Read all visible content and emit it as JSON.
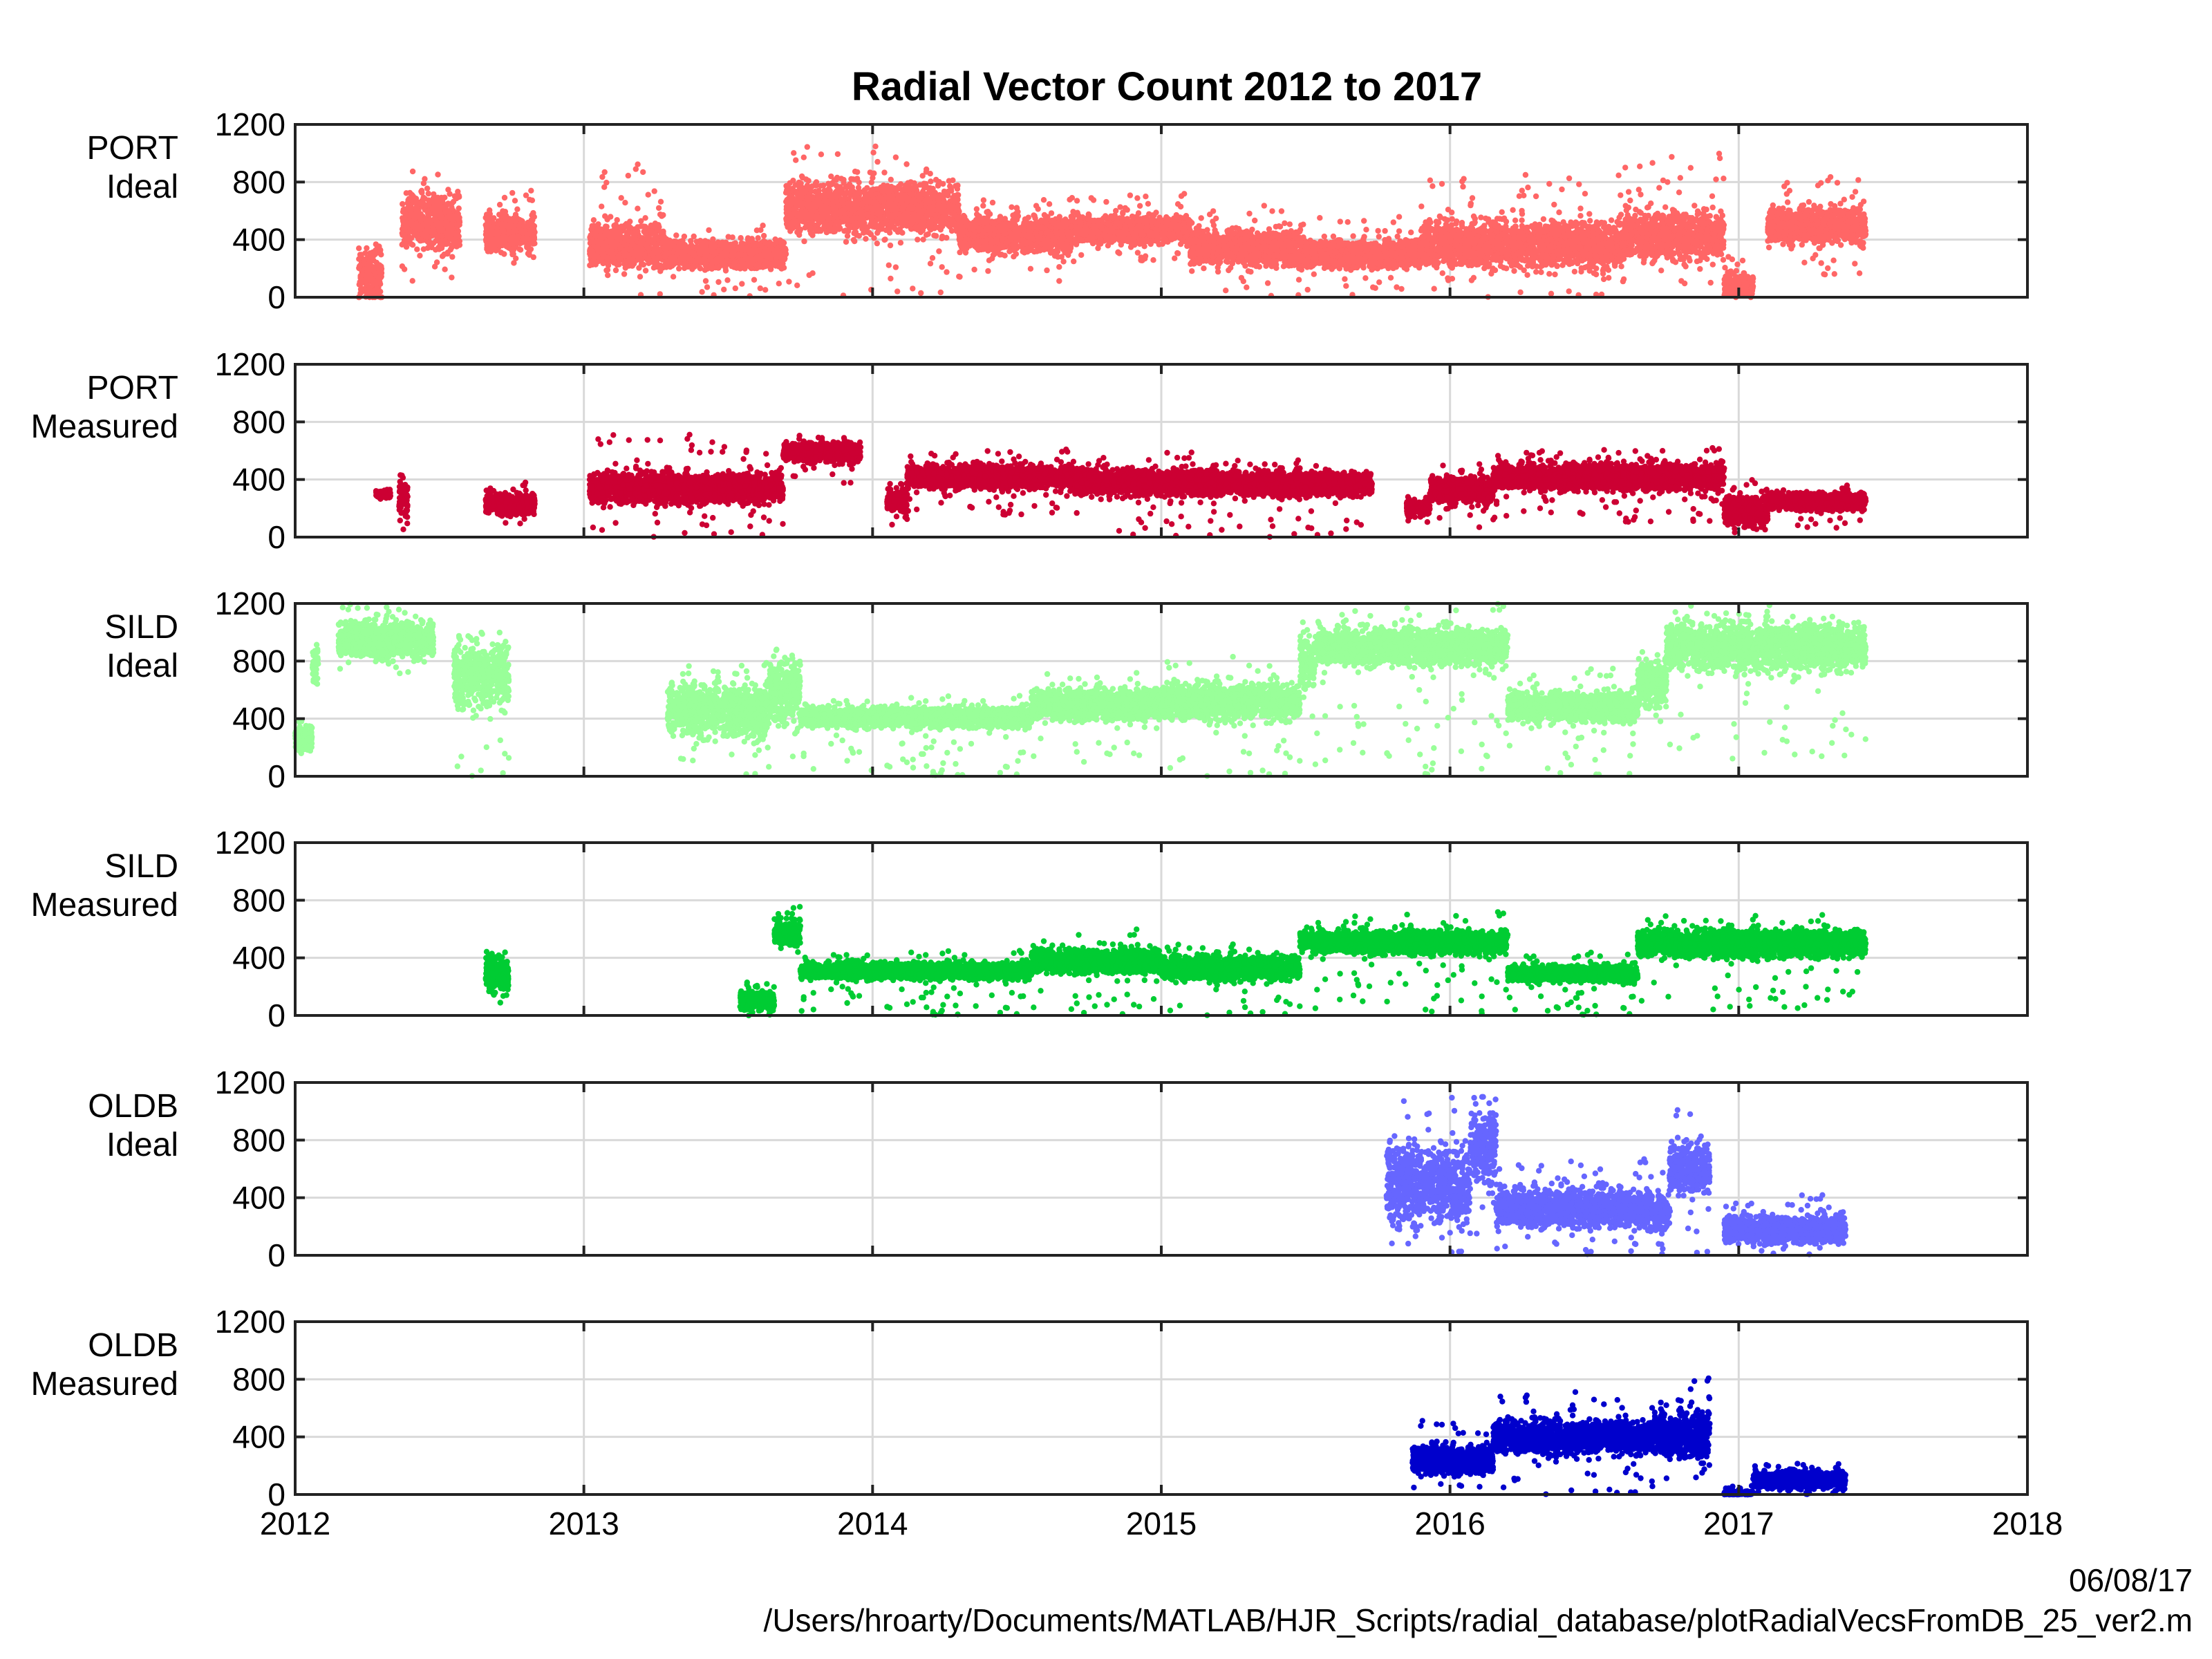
{
  "chart_data": {
    "type": "scatter",
    "title": "Radial Vector Count 2012 to 2017",
    "xlim": [
      2012,
      2018
    ],
    "ylim": [
      0,
      1200
    ],
    "x_ticks": [
      "2012",
      "2013",
      "2014",
      "2015",
      "2016",
      "2017",
      "2018"
    ],
    "y_ticks": [
      "0",
      "400",
      "800",
      "1200"
    ],
    "grid": true,
    "panels": [
      {
        "label_line1": "PORT",
        "label_line2": "Ideal",
        "color": "#ff6666",
        "segments": [
          {
            "x": [
              2012.22,
              2012.3
            ],
            "y": [
              0,
              560
            ],
            "level": 150,
            "spread": 150
          },
          {
            "x": [
              2012.37,
              2012.57
            ],
            "y": [
              60,
              930
            ],
            "level": 520,
            "spread": 170
          },
          {
            "x": [
              2012.66,
              2012.83
            ],
            "y": [
              230,
              760
            ],
            "level": 450,
            "spread": 120
          },
          {
            "x": [
              2013.02,
              2013.28
            ],
            "y": [
              0,
              930
            ],
            "level": 360,
            "spread": 140
          },
          {
            "x": [
              2013.28,
              2013.7
            ],
            "y": [
              0,
              500
            ],
            "level": 300,
            "spread": 80
          },
          {
            "x": [
              2013.7,
              2014.3
            ],
            "y": [
              10,
              1060
            ],
            "level": 620,
            "spread": 160
          },
          {
            "x": [
              2014.3,
              2014.7
            ],
            "y": [
              100,
              700
            ],
            "level": 440,
            "spread": 110
          },
          {
            "x": [
              2014.7,
              2015.1
            ],
            "y": [
              250,
              720
            ],
            "level": 470,
            "spread": 80
          },
          {
            "x": [
              2015.1,
              2015.5
            ],
            "y": [
              0,
              640
            ],
            "level": 340,
            "spread": 110
          },
          {
            "x": [
              2015.5,
              2015.9
            ],
            "y": [
              0,
              560
            ],
            "level": 300,
            "spread": 80
          },
          {
            "x": [
              2015.9,
              2016.6
            ],
            "y": [
              0,
              860
            ],
            "level": 370,
            "spread": 140
          },
          {
            "x": [
              2016.6,
              2016.95
            ],
            "y": [
              60,
              1000
            ],
            "level": 430,
            "spread": 140
          },
          {
            "x": [
              2016.95,
              2017.05
            ],
            "y": [
              0,
              300
            ],
            "level": 80,
            "spread": 70
          },
          {
            "x": [
              2017.1,
              2017.44
            ],
            "y": [
              150,
              840
            ],
            "level": 500,
            "spread": 110
          }
        ]
      },
      {
        "label_line1": "PORT",
        "label_line2": "Measured",
        "color": "#cc0033",
        "segments": [
          {
            "x": [
              2012.28,
              2012.33
            ],
            "y": [
              260,
              330
            ],
            "level": 300,
            "spread": 25
          },
          {
            "x": [
              2012.36,
              2012.39
            ],
            "y": [
              0,
              500
            ],
            "level": 280,
            "spread": 130
          },
          {
            "x": [
              2012.66,
              2012.83
            ],
            "y": [
              90,
              380
            ],
            "level": 230,
            "spread": 60
          },
          {
            "x": [
              2013.02,
              2013.69
            ],
            "y": [
              0,
              720
            ],
            "level": 340,
            "spread": 90
          },
          {
            "x": [
              2013.69,
              2013.96
            ],
            "y": [
              370,
              720
            ],
            "level": 590,
            "spread": 60
          },
          {
            "x": [
              2014.05,
              2014.12
            ],
            "y": [
              40,
              380
            ],
            "level": 260,
            "spread": 70
          },
          {
            "x": [
              2014.12,
              2014.7
            ],
            "y": [
              150,
              610
            ],
            "level": 420,
            "spread": 70
          },
          {
            "x": [
              2014.7,
              2015.2
            ],
            "y": [
              0,
              590
            ],
            "level": 380,
            "spread": 80
          },
          {
            "x": [
              2015.2,
              2015.73
            ],
            "y": [
              0,
              540
            ],
            "level": 370,
            "spread": 70
          },
          {
            "x": [
              2015.85,
              2015.93
            ],
            "y": [
              100,
              300
            ],
            "level": 200,
            "spread": 50
          },
          {
            "x": [
              2015.93,
              2016.15
            ],
            "y": [
              60,
              550
            ],
            "level": 330,
            "spread": 80
          },
          {
            "x": [
              2016.15,
              2016.95
            ],
            "y": [
              100,
              620
            ],
            "level": 420,
            "spread": 80
          },
          {
            "x": [
              2016.95,
              2017.1
            ],
            "y": [
              0,
              400
            ],
            "level": 180,
            "spread": 100
          },
          {
            "x": [
              2017.1,
              2017.44
            ],
            "y": [
              60,
              360
            ],
            "level": 250,
            "spread": 50
          }
        ]
      },
      {
        "label_line1": "SILD",
        "label_line2": "Ideal",
        "color": "#99ff99",
        "segments": [
          {
            "x": [
              2012.0,
              2012.06
            ],
            "y": [
              120,
              400
            ],
            "level": 270,
            "spread": 70
          },
          {
            "x": [
              2012.06,
              2012.08
            ],
            "y": [
              600,
              1000
            ],
            "level": 780,
            "spread": 100
          },
          {
            "x": [
              2012.15,
              2012.48
            ],
            "y": [
              700,
              1200
            ],
            "level": 950,
            "spread": 110
          },
          {
            "x": [
              2012.55,
              2012.74
            ],
            "y": [
              0,
              1000
            ],
            "level": 700,
            "spread": 200
          },
          {
            "x": [
              2013.29,
              2013.64
            ],
            "y": [
              0,
              800
            ],
            "level": 460,
            "spread": 160
          },
          {
            "x": [
              2013.64,
              2013.75
            ],
            "y": [
              0,
              950
            ],
            "level": 600,
            "spread": 200
          },
          {
            "x": [
              2013.75,
              2014.55
            ],
            "y": [
              0,
              560
            ],
            "level": 410,
            "spread": 60
          },
          {
            "x": [
              2014.55,
              2015.0
            ],
            "y": [
              80,
              720
            ],
            "level": 500,
            "spread": 90
          },
          {
            "x": [
              2015.0,
              2015.48
            ],
            "y": [
              0,
              840
            ],
            "level": 520,
            "spread": 110
          },
          {
            "x": [
              2015.48,
              2015.53
            ],
            "y": [
              400,
              1150
            ],
            "level": 800,
            "spread": 150
          },
          {
            "x": [
              2015.53,
              2016.2
            ],
            "y": [
              0,
              1200
            ],
            "level": 900,
            "spread": 110
          },
          {
            "x": [
              2016.2,
              2016.65
            ],
            "y": [
              0,
              750
            ],
            "level": 480,
            "spread": 90
          },
          {
            "x": [
              2016.65,
              2016.75
            ],
            "y": [
              300,
              960
            ],
            "level": 650,
            "spread": 140
          },
          {
            "x": [
              2016.75,
              2017.44
            ],
            "y": [
              120,
              1200
            ],
            "level": 900,
            "spread": 140
          }
        ]
      },
      {
        "label_line1": "SILD",
        "label_line2": "Measured",
        "color": "#00cc33",
        "segments": [
          {
            "x": [
              2012.66,
              2012.74
            ],
            "y": [
              0,
              470
            ],
            "level": 300,
            "spread": 120
          },
          {
            "x": [
              2013.54,
              2013.66
            ],
            "y": [
              0,
              240
            ],
            "level": 100,
            "spread": 60
          },
          {
            "x": [
              2013.66,
              2013.75
            ],
            "y": [
              420,
              760
            ],
            "level": 580,
            "spread": 80
          },
          {
            "x": [
              2013.75,
              2014.55
            ],
            "y": [
              0,
              450
            ],
            "level": 310,
            "spread": 50
          },
          {
            "x": [
              2014.55,
              2015.0
            ],
            "y": [
              0,
              600
            ],
            "level": 380,
            "spread": 70
          },
          {
            "x": [
              2015.0,
              2015.48
            ],
            "y": [
              0,
              500
            ],
            "level": 330,
            "spread": 70
          },
          {
            "x": [
              2015.48,
              2015.53
            ],
            "y": [
              400,
              660
            ],
            "level": 520,
            "spread": 60
          },
          {
            "x": [
              2015.53,
              2016.2
            ],
            "y": [
              0,
              720
            ],
            "level": 510,
            "spread": 70
          },
          {
            "x": [
              2016.2,
              2016.65
            ],
            "y": [
              0,
              440
            ],
            "level": 290,
            "spread": 50
          },
          {
            "x": [
              2016.65,
              2017.44
            ],
            "y": [
              40,
              700
            ],
            "level": 500,
            "spread": 80
          }
        ]
      },
      {
        "label_line1": "OLDB",
        "label_line2": "Ideal",
        "color": "#6666ff",
        "segments": [
          {
            "x": [
              2015.78,
              2016.07
            ],
            "y": [
              0,
              1200
            ],
            "level": 500,
            "spread": 250
          },
          {
            "x": [
              2016.07,
              2016.16
            ],
            "y": [
              0,
              1100
            ],
            "level": 750,
            "spread": 220
          },
          {
            "x": [
              2016.16,
              2016.7
            ],
            "y": [
              0,
              670
            ],
            "level": 330,
            "spread": 110
          },
          {
            "x": [
              2016.7,
              2016.76
            ],
            "y": [
              0,
              600
            ],
            "level": 300,
            "spread": 120
          },
          {
            "x": [
              2016.76,
              2016.9
            ],
            "y": [
              0,
              1080
            ],
            "level": 600,
            "spread": 150
          },
          {
            "x": [
              2016.95,
              2017.37
            ],
            "y": [
              0,
              420
            ],
            "level": 180,
            "spread": 80
          }
        ]
      },
      {
        "label_line1": "OLDB",
        "label_line2": "Measured",
        "color": "#0000cc",
        "segments": [
          {
            "x": [
              2015.87,
              2016.15
            ],
            "y": [
              0,
              520
            ],
            "level": 240,
            "spread": 80
          },
          {
            "x": [
              2016.15,
              2016.7
            ],
            "y": [
              0,
              720
            ],
            "level": 400,
            "spread": 100
          },
          {
            "x": [
              2016.7,
              2016.9
            ],
            "y": [
              0,
              820
            ],
            "level": 420,
            "spread": 140
          },
          {
            "x": [
              2016.95,
              2017.05
            ],
            "y": [
              0,
              60
            ],
            "level": 10,
            "spread": 10
          },
          {
            "x": [
              2017.05,
              2017.37
            ],
            "y": [
              0,
              220
            ],
            "level": 100,
            "spread": 50
          }
        ]
      }
    ]
  },
  "footer": {
    "date": "06/08/17",
    "path": "/Users/hroarty/Documents/MATLAB/HJR_Scripts/radial_database/plotRadialVecsFromDB_25_ver2.m"
  }
}
